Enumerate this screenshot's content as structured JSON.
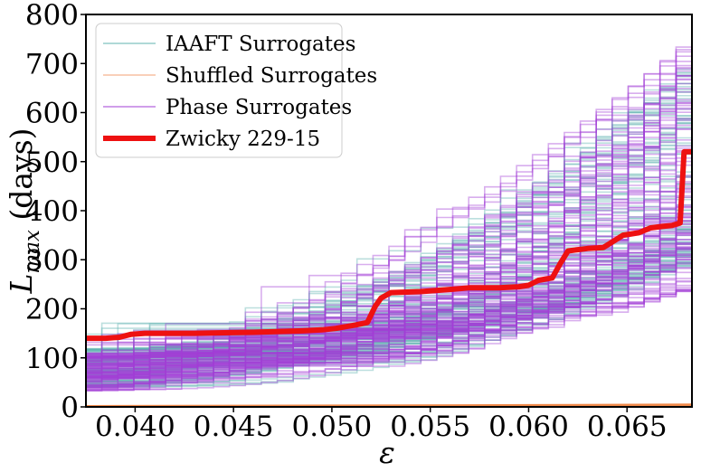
{
  "chart_data": {
    "type": "line",
    "title": "",
    "xlabel": "ε",
    "ylabel_main": "L",
    "ylabel_sub": "max",
    "ylabel_unit": " (days)",
    "xlim": [
      0.0375,
      0.0683
    ],
    "ylim": [
      0,
      800
    ],
    "xticks": [
      0.04,
      0.045,
      0.05,
      0.055,
      0.06,
      0.065
    ],
    "xtick_labels": [
      "0.040",
      "0.045",
      "0.050",
      "0.055",
      "0.060",
      "0.065"
    ],
    "yticks": [
      0,
      100,
      200,
      300,
      400,
      500,
      600,
      700,
      800
    ],
    "ytick_labels": [
      "0",
      "100",
      "200",
      "300",
      "400",
      "500",
      "600",
      "700",
      "800"
    ],
    "grid": false,
    "legend_position": "upper-left",
    "legend": [
      {
        "label": "IAAFT Surrogates",
        "color": "#5fb3b0"
      },
      {
        "label": "Shuffled Surrogates",
        "color": "#f5b08a"
      },
      {
        "label": "Phase Surrogates",
        "color": "#a23ed6"
      },
      {
        "label": "Zwicky 229-15",
        "color": "#ee1111"
      }
    ],
    "series": [
      {
        "name": "Zwicky 229-15",
        "color": "#ee1111",
        "x": [
          0.0375,
          0.0385,
          0.0392,
          0.0398,
          0.0405,
          0.043,
          0.046,
          0.0485,
          0.0495,
          0.0502,
          0.0512,
          0.0518,
          0.0522,
          0.0525,
          0.053,
          0.0545,
          0.0562,
          0.057,
          0.0585,
          0.0595,
          0.06,
          0.0605,
          0.0612,
          0.0616,
          0.062,
          0.0624,
          0.063,
          0.0638,
          0.0642,
          0.0648,
          0.0656,
          0.0662,
          0.0668,
          0.0673,
          0.0677,
          0.0679,
          0.0683
        ],
        "y": [
          140,
          140,
          142,
          148,
          150,
          150,
          152,
          155,
          157,
          160,
          167,
          172,
          205,
          222,
          233,
          235,
          240,
          243,
          243,
          245,
          248,
          258,
          263,
          292,
          318,
          320,
          323,
          325,
          335,
          350,
          355,
          365,
          368,
          370,
          375,
          520,
          520
        ]
      },
      {
        "name": "Shuffled Surrogates",
        "color": "#f5b08a",
        "x": [
          0.0375,
          0.05,
          0.06,
          0.0683
        ],
        "y": [
          1,
          2,
          3,
          4
        ]
      },
      {
        "name": "IAAFT Surrogates",
        "color": "#5fb3b0",
        "count": 90,
        "start_range": [
          40,
          120
        ],
        "end_range": [
          300,
          730
        ]
      },
      {
        "name": "Phase Surrogates",
        "color": "#a23ed6",
        "count": 110,
        "start_range": [
          30,
          110
        ],
        "end_range": [
          245,
          780
        ]
      }
    ]
  }
}
